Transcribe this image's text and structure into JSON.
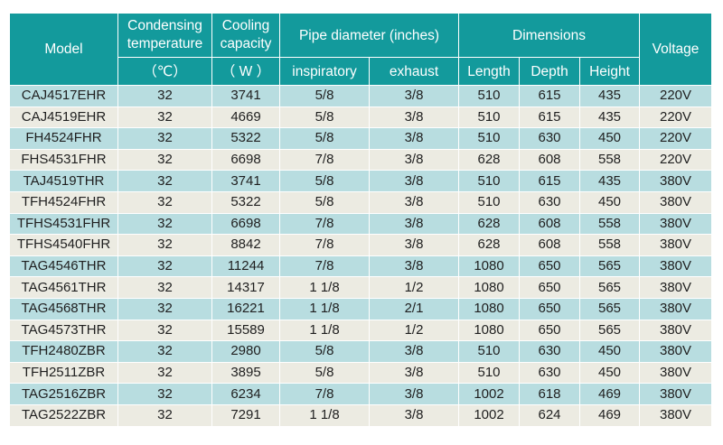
{
  "headers": {
    "model": "Model",
    "condensing_line1": "Condensing",
    "condensing_line2": "temperature",
    "condensing_unit": "（℃）",
    "cooling_line1": "Cooling",
    "cooling_line2": "capacity",
    "cooling_unit": "（ W ）",
    "pipe_diameter": "Pipe diameter (inches)",
    "inspiratory": "inspiratory",
    "exhaust": "exhaust",
    "dimensions": "Dimensions",
    "length": "Length",
    "depth": "Depth",
    "height": "Height",
    "voltage": "Voltage"
  },
  "rows": [
    [
      "CAJ4517EHR",
      "32",
      "3741",
      "5/8",
      "3/8",
      "510",
      "615",
      "435",
      "220V"
    ],
    [
      "CAJ4519EHR",
      "32",
      "4669",
      "5/8",
      "3/8",
      "510",
      "615",
      "435",
      "220V"
    ],
    [
      "FH4524FHR",
      "32",
      "5322",
      "5/8",
      "3/8",
      "510",
      "630",
      "450",
      "220V"
    ],
    [
      "FHS4531FHR",
      "32",
      "6698",
      "7/8",
      "3/8",
      "628",
      "608",
      "558",
      "220V"
    ],
    [
      "TAJ4519THR",
      "32",
      "3741",
      "5/8",
      "3/8",
      "510",
      "615",
      "435",
      "380V"
    ],
    [
      "TFH4524FHR",
      "32",
      "5322",
      "5/8",
      "3/8",
      "510",
      "630",
      "450",
      "380V"
    ],
    [
      "TFHS4531FHR",
      "32",
      "6698",
      "7/8",
      "3/8",
      "628",
      "608",
      "558",
      "380V"
    ],
    [
      "TFHS4540FHR",
      "32",
      "8842",
      "7/8",
      "3/8",
      "628",
      "608",
      "558",
      "380V"
    ],
    [
      "TAG4546THR",
      "32",
      "11244",
      "7/8",
      "3/8",
      "1080",
      "650",
      "565",
      "380V"
    ],
    [
      "TAG4561THR",
      "32",
      "14317",
      "1 1/8",
      "1/2",
      "1080",
      "650",
      "565",
      "380V"
    ],
    [
      "TAG4568THR",
      "32",
      "16221",
      "1 1/8",
      "2/1",
      "1080",
      "650",
      "565",
      "380V"
    ],
    [
      "TAG4573THR",
      "32",
      "15589",
      "1 1/8",
      "1/2",
      "1080",
      "650",
      "565",
      "380V"
    ],
    [
      "TFH2480ZBR",
      "32",
      "2980",
      "5/8",
      "3/8",
      "510",
      "630",
      "450",
      "380V"
    ],
    [
      "TFH2511ZBR",
      "32",
      "3895",
      "5/8",
      "3/8",
      "510",
      "630",
      "450",
      "380V"
    ],
    [
      "TAG2516ZBR",
      "32",
      "6234",
      "7/8",
      "3/8",
      "1002",
      "618",
      "469",
      "380V"
    ],
    [
      "TAG2522ZBR",
      "32",
      "7291",
      "1 1/8",
      "3/8",
      "1002",
      "624",
      "469",
      "380V"
    ]
  ]
}
